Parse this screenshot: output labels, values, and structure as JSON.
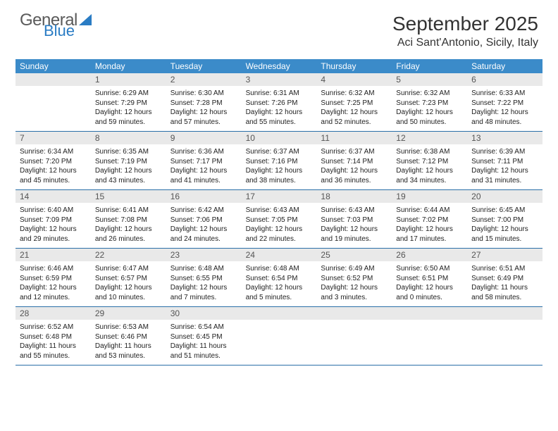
{
  "logo": {
    "line1": "General",
    "line2": "Blue"
  },
  "title": "September 2025",
  "location": "Aci Sant'Antonio, Sicily, Italy",
  "colors": {
    "header_bg": "#3b8bc9",
    "band_bg": "#e9e9e9",
    "rule": "#2a6fa8",
    "logo_blue": "#2a7cc4",
    "text": "#222222"
  },
  "days_of_week": [
    "Sunday",
    "Monday",
    "Tuesday",
    "Wednesday",
    "Thursday",
    "Friday",
    "Saturday"
  ],
  "weeks": [
    [
      null,
      {
        "n": "1",
        "sunrise": "6:29 AM",
        "sunset": "7:29 PM",
        "daylight": "12 hours and 59 minutes."
      },
      {
        "n": "2",
        "sunrise": "6:30 AM",
        "sunset": "7:28 PM",
        "daylight": "12 hours and 57 minutes."
      },
      {
        "n": "3",
        "sunrise": "6:31 AM",
        "sunset": "7:26 PM",
        "daylight": "12 hours and 55 minutes."
      },
      {
        "n": "4",
        "sunrise": "6:32 AM",
        "sunset": "7:25 PM",
        "daylight": "12 hours and 52 minutes."
      },
      {
        "n": "5",
        "sunrise": "6:32 AM",
        "sunset": "7:23 PM",
        "daylight": "12 hours and 50 minutes."
      },
      {
        "n": "6",
        "sunrise": "6:33 AM",
        "sunset": "7:22 PM",
        "daylight": "12 hours and 48 minutes."
      }
    ],
    [
      {
        "n": "7",
        "sunrise": "6:34 AM",
        "sunset": "7:20 PM",
        "daylight": "12 hours and 45 minutes."
      },
      {
        "n": "8",
        "sunrise": "6:35 AM",
        "sunset": "7:19 PM",
        "daylight": "12 hours and 43 minutes."
      },
      {
        "n": "9",
        "sunrise": "6:36 AM",
        "sunset": "7:17 PM",
        "daylight": "12 hours and 41 minutes."
      },
      {
        "n": "10",
        "sunrise": "6:37 AM",
        "sunset": "7:16 PM",
        "daylight": "12 hours and 38 minutes."
      },
      {
        "n": "11",
        "sunrise": "6:37 AM",
        "sunset": "7:14 PM",
        "daylight": "12 hours and 36 minutes."
      },
      {
        "n": "12",
        "sunrise": "6:38 AM",
        "sunset": "7:12 PM",
        "daylight": "12 hours and 34 minutes."
      },
      {
        "n": "13",
        "sunrise": "6:39 AM",
        "sunset": "7:11 PM",
        "daylight": "12 hours and 31 minutes."
      }
    ],
    [
      {
        "n": "14",
        "sunrise": "6:40 AM",
        "sunset": "7:09 PM",
        "daylight": "12 hours and 29 minutes."
      },
      {
        "n": "15",
        "sunrise": "6:41 AM",
        "sunset": "7:08 PM",
        "daylight": "12 hours and 26 minutes."
      },
      {
        "n": "16",
        "sunrise": "6:42 AM",
        "sunset": "7:06 PM",
        "daylight": "12 hours and 24 minutes."
      },
      {
        "n": "17",
        "sunrise": "6:43 AM",
        "sunset": "7:05 PM",
        "daylight": "12 hours and 22 minutes."
      },
      {
        "n": "18",
        "sunrise": "6:43 AM",
        "sunset": "7:03 PM",
        "daylight": "12 hours and 19 minutes."
      },
      {
        "n": "19",
        "sunrise": "6:44 AM",
        "sunset": "7:02 PM",
        "daylight": "12 hours and 17 minutes."
      },
      {
        "n": "20",
        "sunrise": "6:45 AM",
        "sunset": "7:00 PM",
        "daylight": "12 hours and 15 minutes."
      }
    ],
    [
      {
        "n": "21",
        "sunrise": "6:46 AM",
        "sunset": "6:59 PM",
        "daylight": "12 hours and 12 minutes."
      },
      {
        "n": "22",
        "sunrise": "6:47 AM",
        "sunset": "6:57 PM",
        "daylight": "12 hours and 10 minutes."
      },
      {
        "n": "23",
        "sunrise": "6:48 AM",
        "sunset": "6:55 PM",
        "daylight": "12 hours and 7 minutes."
      },
      {
        "n": "24",
        "sunrise": "6:48 AM",
        "sunset": "6:54 PM",
        "daylight": "12 hours and 5 minutes."
      },
      {
        "n": "25",
        "sunrise": "6:49 AM",
        "sunset": "6:52 PM",
        "daylight": "12 hours and 3 minutes."
      },
      {
        "n": "26",
        "sunrise": "6:50 AM",
        "sunset": "6:51 PM",
        "daylight": "12 hours and 0 minutes."
      },
      {
        "n": "27",
        "sunrise": "6:51 AM",
        "sunset": "6:49 PM",
        "daylight": "11 hours and 58 minutes."
      }
    ],
    [
      {
        "n": "28",
        "sunrise": "6:52 AM",
        "sunset": "6:48 PM",
        "daylight": "11 hours and 55 minutes."
      },
      {
        "n": "29",
        "sunrise": "6:53 AM",
        "sunset": "6:46 PM",
        "daylight": "11 hours and 53 minutes."
      },
      {
        "n": "30",
        "sunrise": "6:54 AM",
        "sunset": "6:45 PM",
        "daylight": "11 hours and 51 minutes."
      },
      null,
      null,
      null,
      null
    ]
  ],
  "labels": {
    "sunrise": "Sunrise:",
    "sunset": "Sunset:",
    "daylight": "Daylight:"
  }
}
